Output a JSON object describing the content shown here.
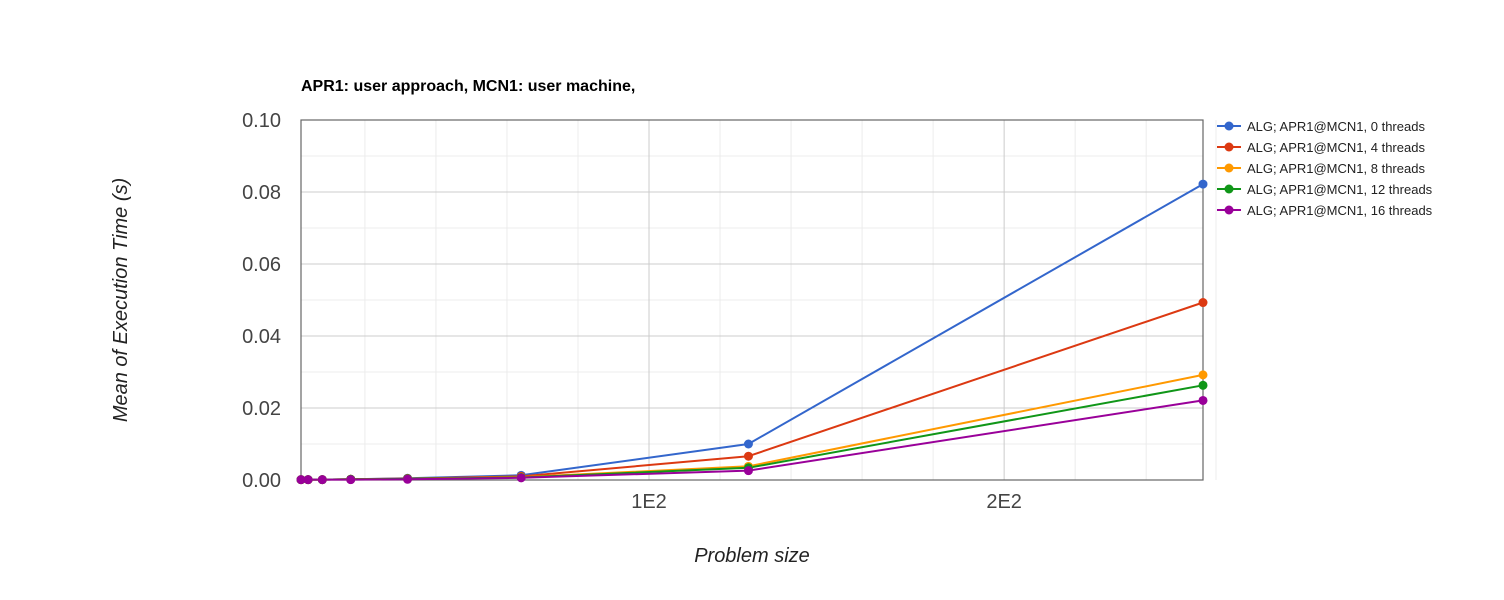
{
  "chart_data": {
    "type": "line",
    "title": "APR1: user approach, MCN1: user machine,",
    "xlabel": "Problem size",
    "ylabel": "Mean of Execution Time (s)",
    "xlim": [
      2,
      256
    ],
    "ylim": [
      0,
      0.1
    ],
    "x_ticks": [
      {
        "value": 100,
        "label": "1E2"
      },
      {
        "value": 200,
        "label": "2E2"
      }
    ],
    "y_ticks": [
      {
        "value": 0.0,
        "label": "0.00"
      },
      {
        "value": 0.02,
        "label": "0.02"
      },
      {
        "value": 0.04,
        "label": "0.04"
      },
      {
        "value": 0.06,
        "label": "0.06"
      },
      {
        "value": 0.08,
        "label": "0.08"
      },
      {
        "value": 0.1,
        "label": "0.10"
      }
    ],
    "grid": true,
    "legend_position": "right",
    "x": [
      2,
      4,
      8,
      16,
      32,
      64,
      128,
      256
    ],
    "series": [
      {
        "name": "ALG; APR1@MCN1, 0 threads",
        "color": "#3366cc",
        "values": [
          0.0001,
          0.0001,
          0.0001,
          0.0002,
          0.0005,
          0.0013,
          0.01,
          0.0822
        ]
      },
      {
        "name": "ALG; APR1@MCN1, 4 threads",
        "color": "#dc3912",
        "values": [
          0.0001,
          0.0001,
          0.0001,
          0.0002,
          0.0004,
          0.001,
          0.0066,
          0.0493
        ]
      },
      {
        "name": "ALG; APR1@MCN1, 8 threads",
        "color": "#ff9900",
        "values": [
          0.0001,
          0.0001,
          0.0001,
          0.0002,
          0.0003,
          0.0008,
          0.0038,
          0.0292
        ]
      },
      {
        "name": "ALG; APR1@MCN1, 12 threads",
        "color": "#109618",
        "values": [
          0.0001,
          0.0001,
          0.0001,
          0.0002,
          0.0003,
          0.0007,
          0.0034,
          0.0263
        ]
      },
      {
        "name": "ALG; APR1@MCN1, 16 threads",
        "color": "#990099",
        "values": [
          0.0001,
          0.0001,
          0.0001,
          0.0001,
          0.0002,
          0.0006,
          0.0026,
          0.0221
        ]
      }
    ]
  }
}
